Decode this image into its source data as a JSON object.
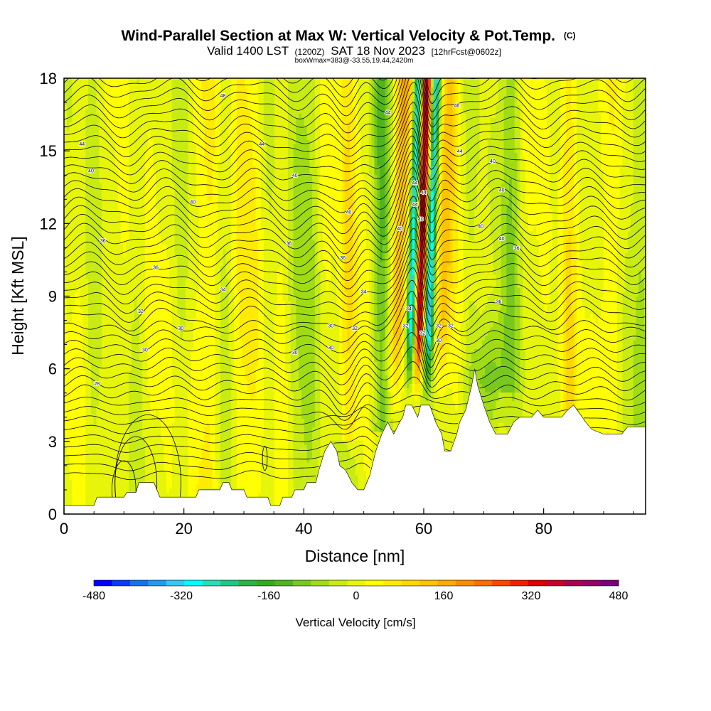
{
  "chart_data": {
    "type": "contour-cross-section",
    "title": "Wind-Parallel Section at Max W: Vertical Velocity & Pot.Temp.",
    "copyright": "(C)",
    "subtitle": {
      "valid": "Valid 1400 LST",
      "utc": "(1200Z)",
      "date": "SAT 18 Nov 2023",
      "forecast": "[12hrFcst@0602z]"
    },
    "box_info": "boxWmax=383@-33.55,19.44,2420m",
    "xlabel": "Distance [nm]",
    "ylabel": "Height [Kft MSL]",
    "xlim": [
      0,
      97
    ],
    "ylim": [
      0,
      18
    ],
    "x_ticks": [
      0,
      20,
      40,
      60,
      80
    ],
    "y_ticks": [
      0,
      3,
      6,
      9,
      12,
      15,
      18
    ],
    "wmax_location_nm": 59,
    "terrain_kft": [
      [
        0,
        0.35
      ],
      [
        5,
        0.35
      ],
      [
        5.5,
        0.7
      ],
      [
        10,
        0.7
      ],
      [
        10.5,
        0.9
      ],
      [
        12,
        0.9
      ],
      [
        12.5,
        1.3
      ],
      [
        15,
        1.3
      ],
      [
        15.5,
        1.0
      ],
      [
        16,
        0.7
      ],
      [
        22,
        0.7
      ],
      [
        22.5,
        1.0
      ],
      [
        26,
        1.0
      ],
      [
        26.5,
        1.3
      ],
      [
        27.5,
        1.3
      ],
      [
        28,
        1.0
      ],
      [
        30,
        1.0
      ],
      [
        30.5,
        0.7
      ],
      [
        34,
        0.7
      ],
      [
        34.5,
        0.35
      ],
      [
        36,
        0.35
      ],
      [
        36.5,
        0.7
      ],
      [
        38,
        0.7
      ],
      [
        38.5,
        1.0
      ],
      [
        40,
        1.0
      ],
      [
        40.5,
        1.3
      ],
      [
        42,
        1.3
      ],
      [
        42.5,
        1.8
      ],
      [
        43.5,
        2.6
      ],
      [
        44.5,
        3.0
      ],
      [
        45.5,
        2.6
      ],
      [
        46,
        2.0
      ],
      [
        47,
        1.8
      ],
      [
        48,
        1.3
      ],
      [
        49,
        1.0
      ],
      [
        50,
        1.0
      ],
      [
        51,
        1.6
      ],
      [
        52,
        2.6
      ],
      [
        53,
        3.3
      ],
      [
        54,
        3.8
      ],
      [
        55,
        3.3
      ],
      [
        56,
        3.8
      ],
      [
        56.5,
        4.0
      ],
      [
        57,
        4.5
      ],
      [
        58,
        4.5
      ],
      [
        59,
        4.0
      ],
      [
        59.5,
        4.5
      ],
      [
        61,
        4.5
      ],
      [
        62,
        3.8
      ],
      [
        63,
        3.3
      ],
      [
        63.5,
        2.6
      ],
      [
        64.5,
        2.6
      ],
      [
        65.5,
        3.3
      ],
      [
        66,
        3.8
      ],
      [
        67,
        4.3
      ],
      [
        68,
        5.3
      ],
      [
        68.5,
        6.0
      ],
      [
        69,
        5.3
      ],
      [
        70,
        4.5
      ],
      [
        71,
        3.8
      ],
      [
        72,
        3.3
      ],
      [
        74,
        3.3
      ],
      [
        75,
        3.8
      ],
      [
        76,
        4.0
      ],
      [
        78,
        4.0
      ],
      [
        79,
        4.3
      ],
      [
        80,
        4.0
      ],
      [
        83,
        4.0
      ],
      [
        84,
        4.3
      ],
      [
        85,
        4.5
      ],
      [
        87,
        3.8
      ],
      [
        88,
        3.5
      ],
      [
        90,
        3.3
      ],
      [
        93,
        3.3
      ],
      [
        94,
        3.6
      ],
      [
        97,
        3.6
      ]
    ],
    "theta_labels": [
      {
        "x": 26.5,
        "y": 17.3,
        "text": "48"
      },
      {
        "x": 3,
        "y": 15.3,
        "text": "44"
      },
      {
        "x": 33,
        "y": 15.3,
        "text": "44"
      },
      {
        "x": 4.5,
        "y": 14.2,
        "text": "40"
      },
      {
        "x": 38.5,
        "y": 14.0,
        "text": "40"
      },
      {
        "x": 21.5,
        "y": 12.9,
        "text": "40"
      },
      {
        "x": 6.5,
        "y": 11.3,
        "text": "36"
      },
      {
        "x": 37.5,
        "y": 11.2,
        "text": "36"
      },
      {
        "x": 15.3,
        "y": 10.2,
        "text": "36"
      },
      {
        "x": 26.5,
        "y": 9.3,
        "text": "34"
      },
      {
        "x": 12.8,
        "y": 8.4,
        "text": "32"
      },
      {
        "x": 19.5,
        "y": 7.7,
        "text": "30"
      },
      {
        "x": 13.5,
        "y": 6.8,
        "text": "30"
      },
      {
        "x": 5.5,
        "y": 5.4,
        "text": "28"
      },
      {
        "x": 38.5,
        "y": 6.7,
        "text": "30"
      },
      {
        "x": 44.5,
        "y": 6.9,
        "text": "30"
      },
      {
        "x": 44.5,
        "y": 7.8,
        "text": "30"
      },
      {
        "x": 48.5,
        "y": 7.7,
        "text": "32"
      },
      {
        "x": 50,
        "y": 9.2,
        "text": "34"
      },
      {
        "x": 46.5,
        "y": 10.6,
        "text": "36"
      },
      {
        "x": 47.5,
        "y": 12.5,
        "text": "40"
      },
      {
        "x": 54,
        "y": 16.6,
        "text": "44"
      },
      {
        "x": 65.5,
        "y": 16.9,
        "text": "48"
      },
      {
        "x": 66,
        "y": 15.0,
        "text": "44"
      },
      {
        "x": 69.5,
        "y": 11.9,
        "text": "40"
      },
      {
        "x": 71.5,
        "y": 14.6,
        "text": "40"
      },
      {
        "x": 73,
        "y": 13.4,
        "text": "40"
      },
      {
        "x": 73,
        "y": 11.4,
        "text": "40"
      },
      {
        "x": 75.5,
        "y": 11.0,
        "text": "36"
      },
      {
        "x": 72.5,
        "y": 8.8,
        "text": "36"
      },
      {
        "x": 56,
        "y": 11.8,
        "text": "40"
      },
      {
        "x": 58.5,
        "y": 13.7,
        "text": "44"
      },
      {
        "x": 60,
        "y": 13.3,
        "text": "44"
      },
      {
        "x": 59.5,
        "y": 12.2,
        "text": "40"
      },
      {
        "x": 58.5,
        "y": 12.8,
        "text": "44"
      },
      {
        "x": 57.5,
        "y": 8.5,
        "text": "34"
      },
      {
        "x": 57,
        "y": 7.8,
        "text": "32"
      },
      {
        "x": 59.8,
        "y": 7.5,
        "text": "32"
      },
      {
        "x": 62.5,
        "y": 7.8,
        "text": "32"
      },
      {
        "x": 64.5,
        "y": 7.8,
        "text": "32"
      },
      {
        "x": 62.5,
        "y": 7.2,
        "text": "30"
      }
    ],
    "colorbar": {
      "label": "Vertical Velocity [cm/s]",
      "range": [
        -480,
        480
      ],
      "tick_values": [
        -480,
        -320,
        -160,
        0,
        160,
        320,
        480
      ],
      "tick_labels": [
        "-480",
        "-320",
        "-160",
        "0",
        "160",
        "320",
        "480"
      ],
      "colors": [
        "#0000ff",
        "#0a3cf5",
        "#1473eb",
        "#1e9bf0",
        "#32c8f0",
        "#00ffff",
        "#28dcb4",
        "#1ec882",
        "#28b446",
        "#32aa1e",
        "#50b41e",
        "#78c81e",
        "#a0dc14",
        "#c8eb14",
        "#e6f50a",
        "#ffff00",
        "#ffeb00",
        "#ffd700",
        "#ffc300",
        "#ffaa00",
        "#ff8c00",
        "#ff6e00",
        "#ff4600",
        "#f01e00",
        "#dc0000",
        "#c80028",
        "#aa0050",
        "#960064",
        "#780078"
      ]
    }
  }
}
